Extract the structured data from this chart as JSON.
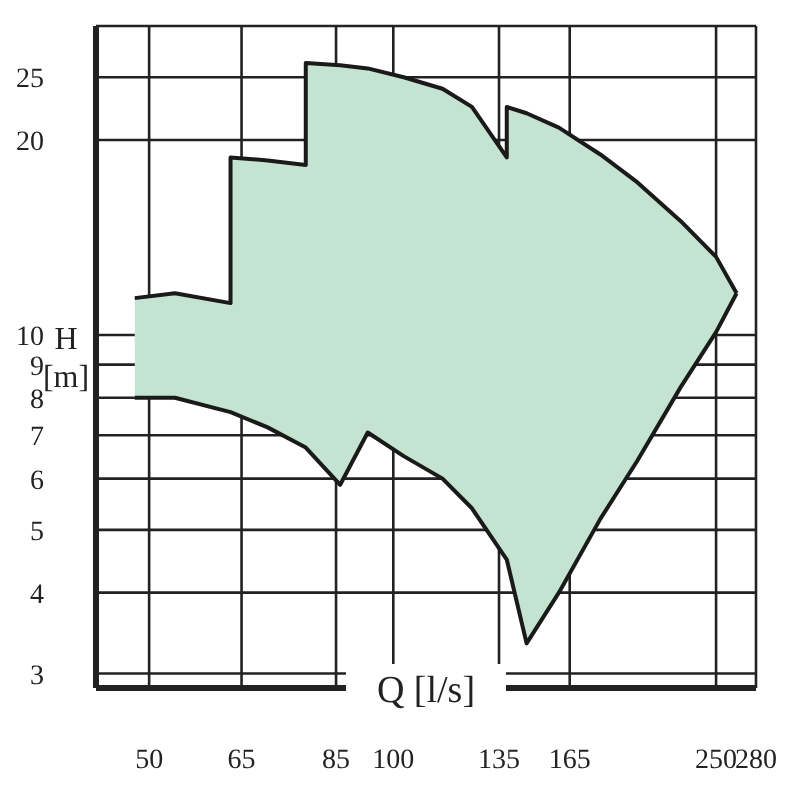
{
  "chart_data": {
    "type": "area",
    "xlabel": "Q [l/s]",
    "ylabel": "H [m]",
    "log": "xy",
    "grid": true,
    "x": [
      48,
      53.8,
      63,
      63,
      70,
      78,
      78,
      86,
      93,
      103,
      115,
      125,
      138,
      138,
      146,
      160,
      180,
      200,
      226,
      250,
      265
    ],
    "series": [
      {
        "color": "#c5e3d1",
        "values": [
          11.4,
          11.6,
          11.2,
          18.8,
          18.6,
          18.3,
          26.3,
          26.1,
          25.8,
          25.0,
          24.0,
          22.5,
          18.8,
          22.5,
          22.0,
          20.9,
          19.0,
          17.2,
          15.0,
          13.2,
          11.6
        ]
      },
      {
        "type": "line",
        "color": "#1a1a1a",
        "values": [
          8.0,
          8.0,
          7.6,
          7.6,
          7.2,
          6.7,
          6.7,
          5.87,
          7.07,
          6.5,
          6.0,
          5.4,
          4.5,
          4.5,
          3.34,
          4.0,
          5.2,
          6.4,
          8.3,
          10.1,
          11.6
        ]
      }
    ],
    "xlim": [
      43,
      280
    ],
    "ylim": [
      2.85,
      30
    ],
    "xticks": [
      50,
      65,
      85,
      100,
      135,
      165,
      250,
      280
    ],
    "yticks": [
      3,
      4,
      5,
      6,
      7,
      8,
      9,
      10,
      20,
      25
    ]
  }
}
